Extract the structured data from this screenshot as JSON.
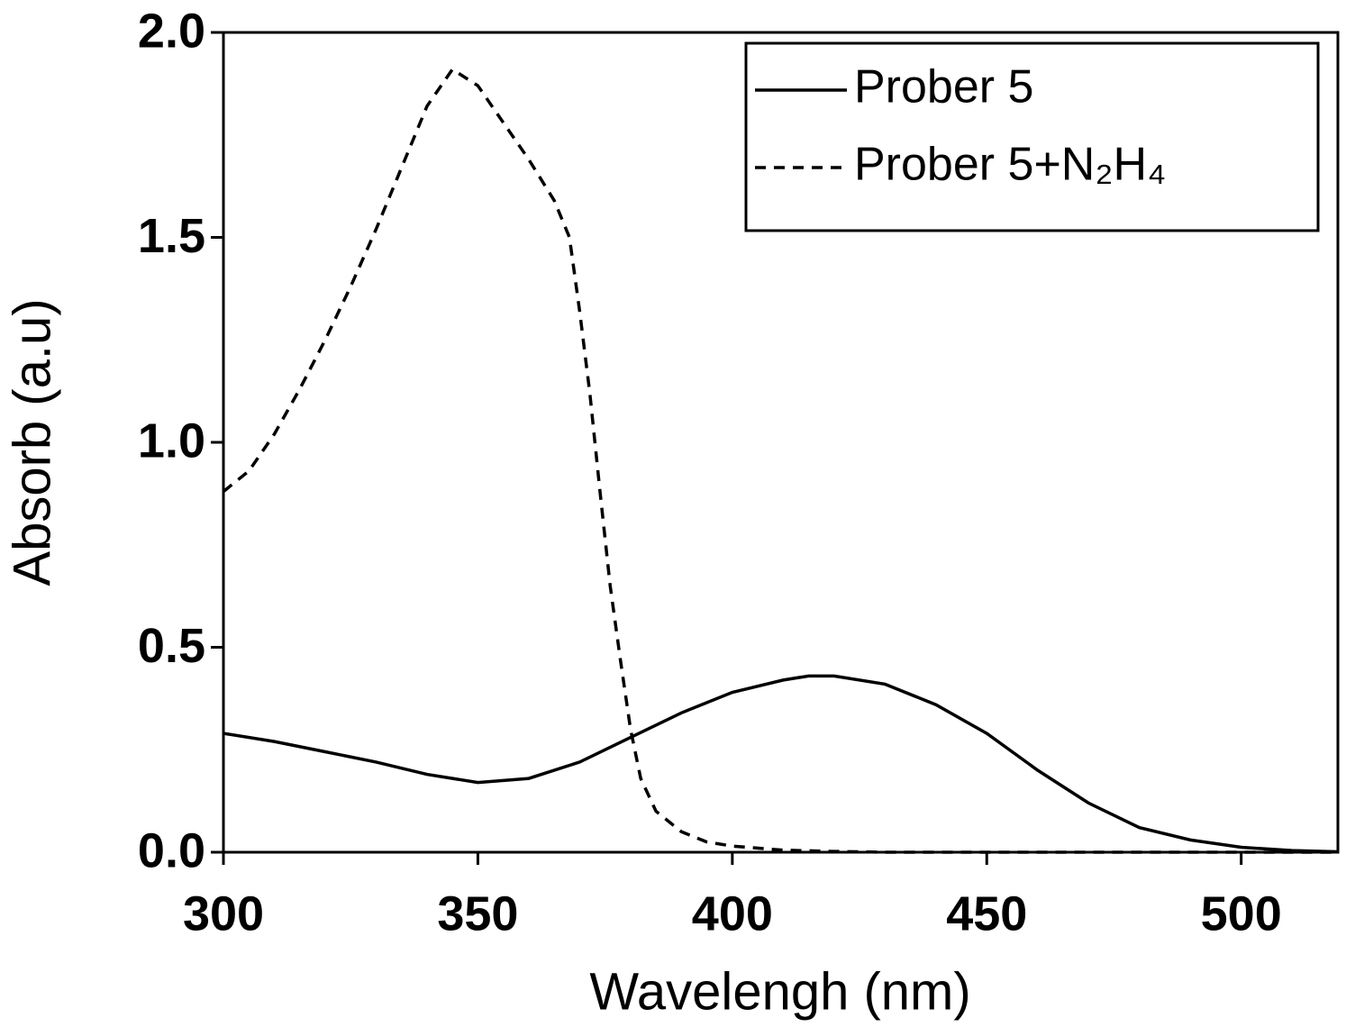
{
  "chart_data": {
    "type": "line",
    "xlabel": "Wavelengh (nm)",
    "ylabel": "Absorb (a.u)",
    "xlim": [
      300,
      519
    ],
    "ylim": [
      0,
      2.0
    ],
    "xticks": [
      300,
      350,
      400,
      450,
      500
    ],
    "yticks": [
      {
        "value": 0,
        "label": "0.0"
      },
      0.5,
      {
        "value": 1,
        "label": "1.0"
      },
      1.5,
      {
        "value": 2,
        "label": "2.0"
      }
    ],
    "legend": "upper right",
    "series": [
      {
        "name": "Prober 5",
        "color": "#000000",
        "dash": "solid",
        "x": [
          300,
          310,
          320,
          330,
          340,
          350,
          360,
          370,
          380,
          390,
          400,
          410,
          415,
          420,
          430,
          440,
          450,
          460,
          470,
          480,
          490,
          500,
          510,
          519
        ],
        "values": [
          0.29,
          0.27,
          0.245,
          0.22,
          0.19,
          0.17,
          0.18,
          0.22,
          0.28,
          0.34,
          0.39,
          0.42,
          0.43,
          0.43,
          0.41,
          0.36,
          0.29,
          0.2,
          0.12,
          0.06,
          0.03,
          0.012,
          0.004,
          0.001
        ]
      },
      {
        "name": "Prober 5+N₂H₄",
        "color": "#000000",
        "dash": "dashed",
        "x": [
          300,
          305,
          310,
          315,
          320,
          325,
          330,
          335,
          340,
          345,
          350,
          355,
          360,
          365,
          368,
          370,
          372,
          374,
          376,
          378,
          380,
          382,
          385,
          390,
          395,
          400,
          410,
          420,
          430,
          519
        ],
        "values": [
          0.88,
          0.93,
          1.02,
          1.13,
          1.25,
          1.38,
          1.52,
          1.67,
          1.82,
          1.91,
          1.87,
          1.78,
          1.69,
          1.59,
          1.5,
          1.32,
          1.12,
          0.88,
          0.65,
          0.47,
          0.3,
          0.18,
          0.1,
          0.05,
          0.025,
          0.015,
          0.005,
          0.002,
          0,
          0
        ]
      }
    ]
  }
}
